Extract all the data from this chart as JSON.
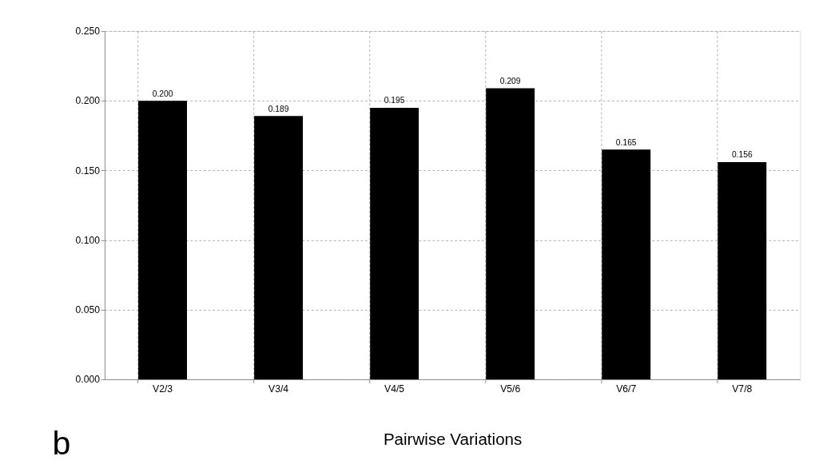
{
  "chart_data": {
    "type": "bar",
    "xlabel": "Pairwise Variations",
    "categories": [
      "V2/3",
      "V3/4",
      "V4/5",
      "V5/6",
      "V6/7",
      "V7/8"
    ],
    "values": [
      0.2,
      0.189,
      0.195,
      0.209,
      0.165,
      0.156
    ],
    "value_labels": [
      "0.200",
      "0.189",
      "0.195",
      "0.209",
      "0.165",
      "0.156"
    ],
    "color": "#000000",
    "ylim": [
      0,
      0.25
    ],
    "yticks": [
      {
        "value": 0,
        "label": "0.000"
      },
      {
        "value": 0.05,
        "label": "0.050"
      },
      {
        "value": 0.1,
        "label": "0.100"
      },
      {
        "value": 0.15,
        "label": "0.150"
      },
      {
        "value": 0.2,
        "label": "0.200"
      },
      {
        "value": 0.25,
        "label": "0.250"
      }
    ],
    "grid": true,
    "annotations": [
      "b"
    ]
  }
}
